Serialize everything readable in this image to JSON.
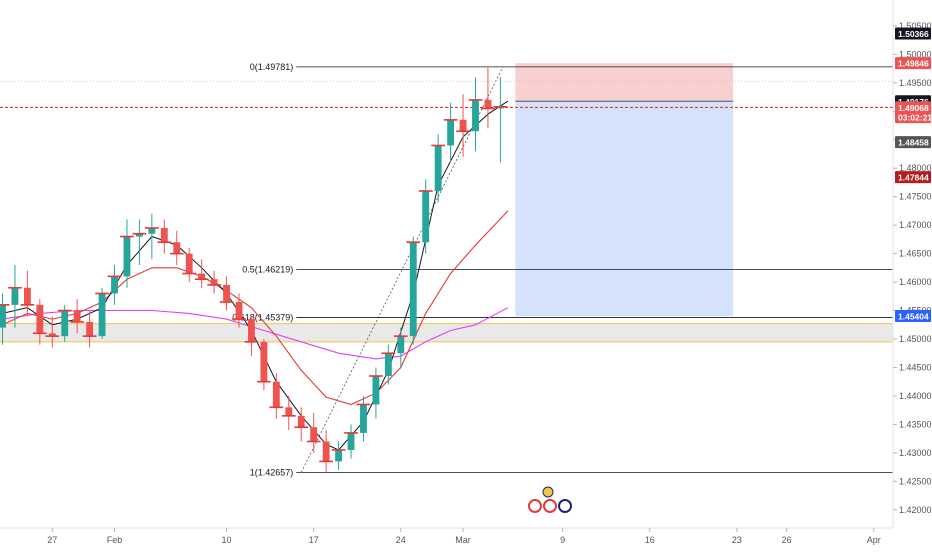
{
  "chart_data": {
    "type": "candlestick",
    "instrument_note": "",
    "price_axis": {
      "ylim": [
        1.4175,
        1.5085
      ],
      "ticks": [
        "1.42000",
        "1.42500",
        "1.43000",
        "1.43500",
        "1.44000",
        "1.44500",
        "1.45000",
        "1.45500",
        "1.46000",
        "1.46500",
        "1.47000",
        "1.47500",
        "1.48000",
        "1.48500",
        "1.49000",
        "1.49500",
        "1.50000",
        "1.50500"
      ],
      "tick_values": [
        1.42,
        1.425,
        1.43,
        1.435,
        1.44,
        1.445,
        1.45,
        1.455,
        1.46,
        1.465,
        1.47,
        1.475,
        1.48,
        1.485,
        1.49,
        1.495,
        1.5,
        1.505
      ]
    },
    "time_axis": {
      "labels": [
        "27",
        "Feb",
        "10",
        "17",
        "24",
        "Mar",
        "9",
        "16",
        "23",
        "26",
        "Apr"
      ],
      "label_days": [
        0,
        5,
        14,
        21,
        28,
        33,
        41,
        48,
        55,
        59,
        66
      ],
      "xlim": [
        -4.2,
        67.3
      ]
    },
    "price_badges": [
      {
        "label": "1.50366",
        "value": 1.50366,
        "color": "#131722"
      },
      {
        "label": "1.49846",
        "value": 1.49846,
        "color": "#ef5350"
      },
      {
        "label": "1.49176",
        "value": 1.49176,
        "color": "#131722"
      },
      {
        "label": "1.49068",
        "value": 1.49068,
        "color": "#ef5350"
      },
      {
        "label": "03:02:21",
        "value": 1.48898,
        "color": "#ef5350"
      },
      {
        "label": "1.48458",
        "value": 1.48458,
        "color": "#555555"
      },
      {
        "label": "1.47844",
        "value": 1.47844,
        "color": "#b71c1c"
      },
      {
        "label": "1.45404",
        "value": 1.45404,
        "color": "#2962ff"
      }
    ],
    "fibonacci": [
      {
        "label": "0(1.49781)",
        "value": 1.49781
      },
      {
        "label": "0.5(1.46219)",
        "value": 1.46219
      },
      {
        "label": "0.618(1.45379)",
        "value": 1.45379
      },
      {
        "label": "1(1.42657)",
        "value": 1.42657
      }
    ],
    "trend_line": {
      "from": [
        20,
        1.42657
      ],
      "to": [
        36.2,
        1.49781
      ]
    },
    "position_tool": {
      "start_day": 37.2,
      "end_day": 54.7,
      "stop": 1.49846,
      "entry": 1.49176,
      "target": 1.45404,
      "stop_color": "#f8d0d0",
      "target_color": "#d4e3fb"
    },
    "support_zone": {
      "low": 1.4495,
      "high": 1.4527,
      "color": "#e0e0e0"
    },
    "current_price_line": 1.49068,
    "colors": {
      "up": "#26a69a",
      "down": "#ef5350",
      "ma_fast": "#131722",
      "ma_mid": "#e53935",
      "ma_slow": "#e040fb",
      "fib": "#131722",
      "zone_border": "#f5c542"
    },
    "candles": [
      {
        "d": -4,
        "o": 1.452,
        "h": 1.458,
        "l": 1.449,
        "c": 1.456
      },
      {
        "d": -3,
        "o": 1.456,
        "h": 1.463,
        "l": 1.452,
        "c": 1.459
      },
      {
        "d": -2,
        "o": 1.459,
        "h": 1.462,
        "l": 1.454,
        "c": 1.456
      },
      {
        "d": -1,
        "o": 1.456,
        "h": 1.457,
        "l": 1.449,
        "c": 1.451
      },
      {
        "d": 0,
        "o": 1.451,
        "h": 1.454,
        "l": 1.4485,
        "c": 1.4505
      },
      {
        "d": 1,
        "o": 1.4505,
        "h": 1.456,
        "l": 1.4495,
        "c": 1.455
      },
      {
        "d": 2,
        "o": 1.455,
        "h": 1.457,
        "l": 1.451,
        "c": 1.453
      },
      {
        "d": 3,
        "o": 1.453,
        "h": 1.455,
        "l": 1.4485,
        "c": 1.4505
      },
      {
        "d": 4,
        "o": 1.4505,
        "h": 1.459,
        "l": 1.45,
        "c": 1.458
      },
      {
        "d": 5,
        "o": 1.458,
        "h": 1.463,
        "l": 1.456,
        "c": 1.461
      },
      {
        "d": 6,
        "o": 1.461,
        "h": 1.471,
        "l": 1.459,
        "c": 1.468
      },
      {
        "d": 7,
        "o": 1.468,
        "h": 1.471,
        "l": 1.463,
        "c": 1.4685
      },
      {
        "d": 8,
        "o": 1.4685,
        "h": 1.472,
        "l": 1.464,
        "c": 1.4695
      },
      {
        "d": 9,
        "o": 1.4695,
        "h": 1.471,
        "l": 1.465,
        "c": 1.467
      },
      {
        "d": 10,
        "o": 1.467,
        "h": 1.469,
        "l": 1.463,
        "c": 1.465
      },
      {
        "d": 11,
        "o": 1.465,
        "h": 1.466,
        "l": 1.46,
        "c": 1.4615
      },
      {
        "d": 12,
        "o": 1.4615,
        "h": 1.464,
        "l": 1.459,
        "c": 1.4605
      },
      {
        "d": 13,
        "o": 1.4605,
        "h": 1.462,
        "l": 1.458,
        "c": 1.4595
      },
      {
        "d": 14,
        "o": 1.4595,
        "h": 1.461,
        "l": 1.455,
        "c": 1.4565
      },
      {
        "d": 15,
        "o": 1.4565,
        "h": 1.458,
        "l": 1.452,
        "c": 1.4535
      },
      {
        "d": 16,
        "o": 1.4535,
        "h": 1.454,
        "l": 1.447,
        "c": 1.4495
      },
      {
        "d": 17,
        "o": 1.4495,
        "h": 1.45,
        "l": 1.441,
        "c": 1.4425
      },
      {
        "d": 18,
        "o": 1.4425,
        "h": 1.444,
        "l": 1.436,
        "c": 1.438
      },
      {
        "d": 19,
        "o": 1.438,
        "h": 1.44,
        "l": 1.434,
        "c": 1.4365
      },
      {
        "d": 20,
        "o": 1.4365,
        "h": 1.438,
        "l": 1.432,
        "c": 1.4345
      },
      {
        "d": 21,
        "o": 1.4345,
        "h": 1.437,
        "l": 1.43,
        "c": 1.432
      },
      {
        "d": 22,
        "o": 1.432,
        "h": 1.434,
        "l": 1.4266,
        "c": 1.4285
      },
      {
        "d": 23,
        "o": 1.4285,
        "h": 1.432,
        "l": 1.427,
        "c": 1.4305
      },
      {
        "d": 24,
        "o": 1.4305,
        "h": 1.435,
        "l": 1.429,
        "c": 1.4335
      },
      {
        "d": 25,
        "o": 1.4335,
        "h": 1.44,
        "l": 1.432,
        "c": 1.4385
      },
      {
        "d": 26,
        "o": 1.4385,
        "h": 1.445,
        "l": 1.436,
        "c": 1.4435
      },
      {
        "d": 27,
        "o": 1.4435,
        "h": 1.449,
        "l": 1.442,
        "c": 1.4475
      },
      {
        "d": 28,
        "o": 1.4475,
        "h": 1.452,
        "l": 1.445,
        "c": 1.4505
      },
      {
        "d": 29,
        "o": 1.4505,
        "h": 1.468,
        "l": 1.449,
        "c": 1.467
      },
      {
        "d": 30,
        "o": 1.467,
        "h": 1.478,
        "l": 1.465,
        "c": 1.476
      },
      {
        "d": 31,
        "o": 1.476,
        "h": 1.486,
        "l": 1.474,
        "c": 1.484
      },
      {
        "d": 32,
        "o": 1.484,
        "h": 1.4915,
        "l": 1.481,
        "c": 1.4885
      },
      {
        "d": 33,
        "o": 1.4885,
        "h": 1.493,
        "l": 1.482,
        "c": 1.4865
      },
      {
        "d": 34,
        "o": 1.4865,
        "h": 1.496,
        "l": 1.483,
        "c": 1.492
      },
      {
        "d": 35,
        "o": 1.492,
        "h": 1.4978,
        "l": 1.487,
        "c": 1.4905
      },
      {
        "d": 36,
        "o": 1.4905,
        "h": 1.496,
        "l": 1.481,
        "c": 1.4908
      }
    ],
    "ma_fast_values": [
      [
        -4,
        1.4545
      ],
      [
        -2,
        1.4555
      ],
      [
        0,
        1.4525
      ],
      [
        2,
        1.4535
      ],
      [
        4,
        1.4555
      ],
      [
        6,
        1.463
      ],
      [
        8,
        1.468
      ],
      [
        10,
        1.4665
      ],
      [
        12,
        1.4625
      ],
      [
        14,
        1.458
      ],
      [
        16,
        1.4515
      ],
      [
        18,
        1.4425
      ],
      [
        20,
        1.4365
      ],
      [
        22,
        1.4315
      ],
      [
        23,
        1.4305
      ],
      [
        25,
        1.4355
      ],
      [
        27,
        1.4445
      ],
      [
        29,
        1.458
      ],
      [
        31,
        1.477
      ],
      [
        33,
        1.4855
      ],
      [
        35,
        1.4895
      ],
      [
        36.6,
        1.4918
      ]
    ],
    "ma_mid_values": [
      [
        -4,
        1.4525
      ],
      [
        -2,
        1.4545
      ],
      [
        0,
        1.4535
      ],
      [
        2,
        1.4545
      ],
      [
        4,
        1.4565
      ],
      [
        6,
        1.4605
      ],
      [
        8,
        1.4625
      ],
      [
        10,
        1.4625
      ],
      [
        12,
        1.461
      ],
      [
        14,
        1.4585
      ],
      [
        16,
        1.4555
      ],
      [
        18,
        1.4505
      ],
      [
        20,
        1.4445
      ],
      [
        22,
        1.4398
      ],
      [
        24,
        1.4385
      ],
      [
        26,
        1.4405
      ],
      [
        28,
        1.445
      ],
      [
        30,
        1.4545
      ],
      [
        32,
        1.4615
      ],
      [
        34,
        1.4665
      ],
      [
        36.6,
        1.4725
      ]
    ],
    "ma_slow_values": [
      [
        -4,
        1.4535
      ],
      [
        -1,
        1.4545
      ],
      [
        2,
        1.455
      ],
      [
        5,
        1.455
      ],
      [
        8,
        1.455
      ],
      [
        11,
        1.4545
      ],
      [
        14,
        1.4535
      ],
      [
        17,
        1.4515
      ],
      [
        20,
        1.4495
      ],
      [
        23,
        1.4475
      ],
      [
        26,
        1.4465
      ],
      [
        28,
        1.447
      ],
      [
        30,
        1.4495
      ],
      [
        32,
        1.4515
      ],
      [
        34,
        1.4525
      ],
      [
        36.6,
        1.4555
      ]
    ]
  }
}
